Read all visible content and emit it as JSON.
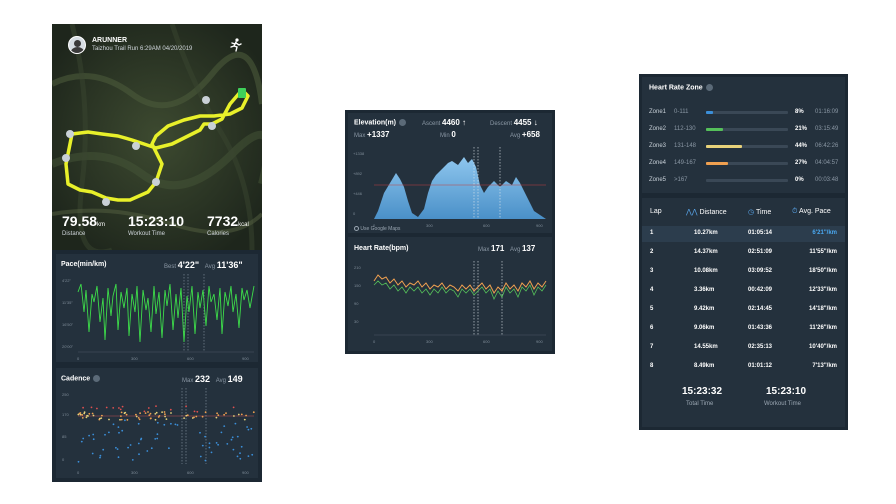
{
  "left": {
    "user": "ARUNNER",
    "run_info": "Taizhou Trail Run 6:29AM 04/20/2019",
    "stats": [
      {
        "value": "79.58",
        "unit": "km",
        "label": "Distance"
      },
      {
        "value": "15:23:10",
        "unit": "",
        "label": "Workout Time"
      },
      {
        "value": "7732",
        "unit": "kcal",
        "label": "Calories"
      }
    ],
    "pace": {
      "title": "Pace(min/km)",
      "best_label": "Best",
      "best": "4'22\"",
      "avg_label": "Avg",
      "avg": "11'36\"",
      "y_ticks": [
        "4'22\"",
        "11'35\"",
        "16'50\"",
        "20'00\""
      ],
      "x_ticks": [
        "0",
        "300",
        "600",
        "900"
      ]
    },
    "cadence": {
      "title": "Cadence",
      "max_label": "Max",
      "max": "232",
      "avg_label": "Avg",
      "avg": "149",
      "y_ticks": [
        "250",
        "170",
        "85",
        "0"
      ],
      "x_ticks": [
        "0",
        "300",
        "600",
        "900"
      ]
    }
  },
  "middle": {
    "elevation": {
      "title": "Elevation(m)",
      "ascent_label": "Ascent",
      "ascent": "4460 ↑",
      "descent_label": "Descent",
      "descent": "4455 ↓",
      "max_label": "Max",
      "max": "+1337",
      "min_label": "Min",
      "min": "0",
      "avg_label": "Avg",
      "avg": "+658",
      "y_ticks": [
        "+1338",
        "+892",
        "+446",
        "0"
      ],
      "x_ticks": [
        "0",
        "300",
        "600",
        "900"
      ],
      "footnote": "Use Google Maps"
    },
    "heart": {
      "title": "Heart Rate(bpm)",
      "max_label": "Max",
      "max": "171",
      "avg_label": "Avg",
      "avg": "137",
      "y_ticks": [
        "210",
        "150",
        "90",
        "30"
      ],
      "x_ticks": [
        "0",
        "300",
        "600",
        "900"
      ]
    }
  },
  "right": {
    "zone_title": "Heart Rate Zone",
    "zones": [
      {
        "name": "Zone1",
        "range": "0-111",
        "pct": "8%",
        "time": "01:16:09",
        "fill": 0.08,
        "color": "#3b8fd9"
      },
      {
        "name": "Zone2",
        "range": "112-130",
        "pct": "21%",
        "time": "03:15:49",
        "fill": 0.21,
        "color": "#55c05a"
      },
      {
        "name": "Zone3",
        "range": "131-148",
        "pct": "44%",
        "time": "06:42:26",
        "fill": 0.44,
        "color": "#e8d27a"
      },
      {
        "name": "Zone4",
        "range": "149-167",
        "pct": "27%",
        "time": "04:04:57",
        "fill": 0.27,
        "color": "#f0a050"
      },
      {
        "name": "Zone5",
        "range": ">167",
        "pct": "0%",
        "time": "00:03:48",
        "fill": 0.0,
        "color": "#e05050"
      }
    ],
    "lap_headers": {
      "lap": "Lap",
      "distance": "Distance",
      "time": "Time",
      "pace": "Avg. Pace"
    },
    "laps": [
      {
        "n": "1",
        "dist": "10.27km",
        "time": "01:05:14",
        "pace": "6'21\"/km"
      },
      {
        "n": "2",
        "dist": "14.37km",
        "time": "02:51:09",
        "pace": "11'55\"/km"
      },
      {
        "n": "3",
        "dist": "10.08km",
        "time": "03:09:52",
        "pace": "18'50\"/km"
      },
      {
        "n": "4",
        "dist": "3.36km",
        "time": "00:42:09",
        "pace": "12'33\"/km"
      },
      {
        "n": "5",
        "dist": "9.42km",
        "time": "02:14:45",
        "pace": "14'18\"/km"
      },
      {
        "n": "6",
        "dist": "9.06km",
        "time": "01:43:36",
        "pace": "11'26\"/km"
      },
      {
        "n": "7",
        "dist": "14.55km",
        "time": "02:35:13",
        "pace": "10'40\"/km"
      },
      {
        "n": "8",
        "dist": "8.49km",
        "time": "01:01:12",
        "pace": "7'13\"/km"
      }
    ],
    "total": {
      "value": "15:23:32",
      "label": "Total Time"
    },
    "workout": {
      "value": "15:23:10",
      "label": "Workout Time"
    }
  }
}
